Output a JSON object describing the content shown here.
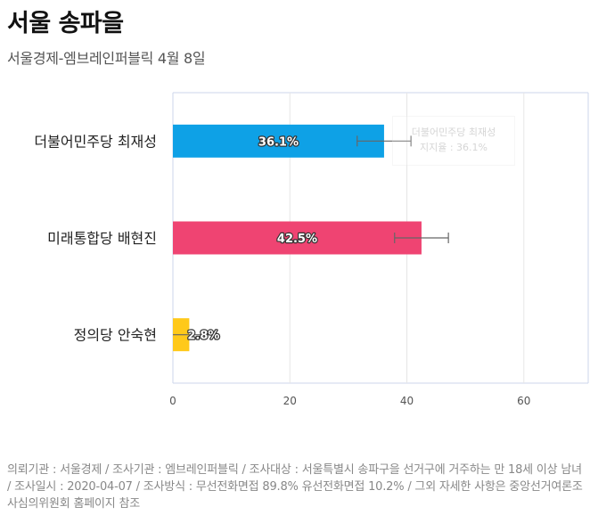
{
  "header": {
    "title": "서울 송파을",
    "subtitle": "서울경제-엠브레인퍼블릭 4월 8일"
  },
  "tooltip": {
    "line1": "더불어민주당 최재성",
    "line2": "지지율 : 36.1%"
  },
  "footer": {
    "text": "의뢰기관 : 서울경제 / 조사기관 : 엠브레인퍼블릭 / 조사대상 : 서울특별시 송파구을 선거구에 거주하는 만 18세 이상 남녀 / 조사일시 : 2020-04-07 / 조사방식 : 무선전화면접 89.8% 유선전화면접 10.2% / 그외 자세한 사항은 중앙선거여론조사심의위원회 홈페이지 참조"
  },
  "chart_data": {
    "type": "bar",
    "orientation": "horizontal",
    "title": "서울 송파을",
    "categories": [
      "더불어민주당 최재성",
      "미래통합당 배현진",
      "정의당 안숙현"
    ],
    "values": [
      36.1,
      42.5,
      2.8
    ],
    "value_labels": [
      "36.1%",
      "42.5%",
      "2.8%"
    ],
    "error_bars": [
      [
        31.5,
        40.7
      ],
      [
        37.9,
        47.1
      ],
      [
        0.0,
        7.2
      ]
    ],
    "colors": [
      "#0ea1e6",
      "#ef4472",
      "#ffc91a"
    ],
    "x_ticks": [
      0,
      20,
      40,
      60
    ],
    "xlim": [
      0,
      71
    ],
    "grid": true,
    "xlabel": "",
    "ylabel": ""
  }
}
